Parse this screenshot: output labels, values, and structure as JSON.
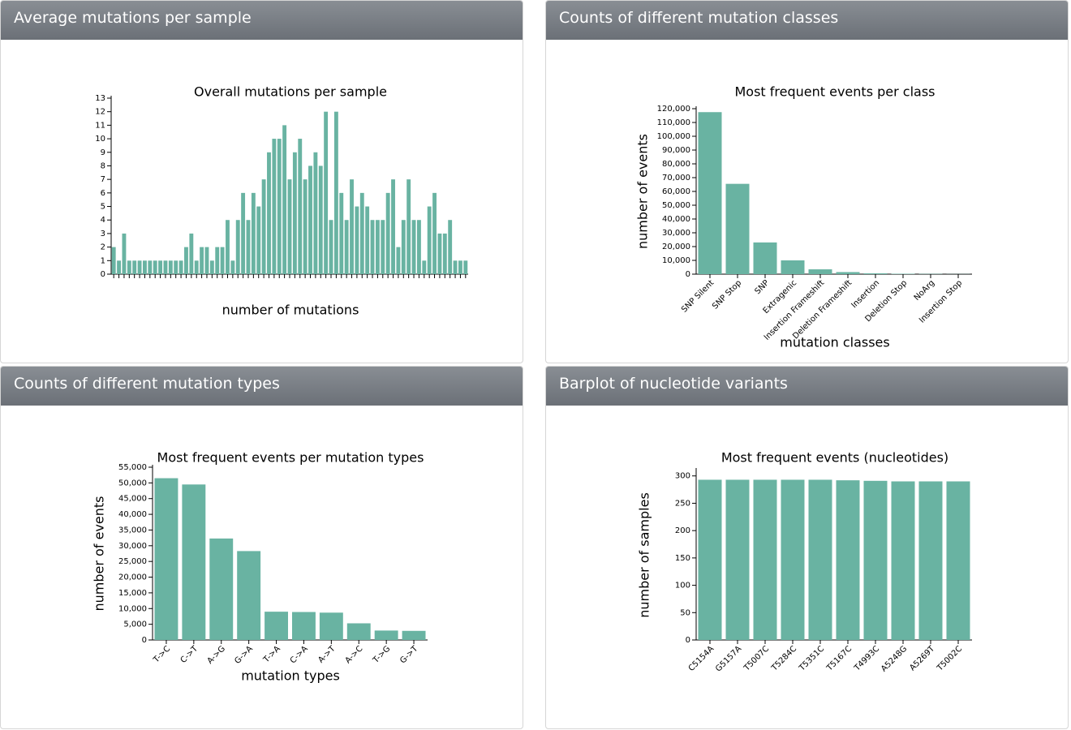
{
  "chart_data": [
    {
      "type": "bar",
      "panel_title": "Average mutations per sample",
      "title": "Overall mutations per sample",
      "x_label": "number of mutations",
      "color": "#69b3a2",
      "categories": [
        null,
        null,
        null,
        null,
        null,
        null,
        null,
        null,
        null,
        null,
        null,
        null,
        null,
        null,
        null,
        null,
        null,
        null,
        null,
        null,
        null,
        null,
        null,
        null,
        null,
        null,
        null,
        null,
        null,
        null,
        null,
        null,
        null,
        null,
        null,
        null,
        null,
        null,
        null,
        null,
        null,
        null,
        null,
        null,
        null,
        null,
        null,
        null,
        null,
        null,
        null,
        null,
        null,
        null,
        null,
        null,
        null,
        null,
        null,
        null,
        null,
        null,
        null,
        null,
        null,
        null,
        null,
        null,
        null
      ],
      "values": [
        2,
        1,
        3,
        1,
        1,
        1,
        1,
        1,
        1,
        1,
        1,
        1,
        1,
        1,
        2,
        3,
        1,
        2,
        2,
        1,
        2,
        2,
        4,
        1,
        4,
        6,
        4,
        6,
        5,
        7,
        9,
        10,
        10,
        11,
        7,
        9,
        10,
        7,
        8,
        9,
        8,
        12,
        4,
        12,
        6,
        4,
        7,
        5,
        6,
        5,
        4,
        4,
        4,
        6,
        7,
        2,
        4,
        7,
        4,
        4,
        1,
        5,
        6,
        3,
        3,
        4,
        1,
        1,
        1
      ],
      "ylim": [
        0,
        13
      ],
      "yticks": [
        0,
        1,
        2,
        3,
        4,
        5,
        6,
        7,
        8,
        9,
        10,
        11,
        12,
        13
      ]
    },
    {
      "type": "bar",
      "panel_title": "Counts of different mutation classes",
      "title": "Most frequent events per class",
      "x_label": "mutation classes",
      "y_label": "number of events",
      "color": "#69b3a2",
      "categories": [
        "SNP Silent",
        "SNP Stop",
        "SNP",
        "Extragenic",
        "Insertion Frameshift",
        "Deletion Frameshift",
        "Insertion",
        "Deletion Stop",
        "NoArg",
        "Insertion Stop"
      ],
      "values": [
        117500,
        65500,
        23000,
        10000,
        3500,
        1500,
        600,
        300,
        200,
        100
      ],
      "ylim": [
        0,
        120000
      ],
      "yticks": [
        0,
        {
          "value": 10000,
          "label": "10,000"
        },
        {
          "value": 20000,
          "label": "20,000"
        },
        {
          "value": 30000,
          "label": "30,000"
        },
        {
          "value": 40000,
          "label": "40,000"
        },
        {
          "value": 50000,
          "label": "50,000"
        },
        {
          "value": 60000,
          "label": "60,000"
        },
        {
          "value": 70000,
          "label": "70,000"
        },
        {
          "value": 80000,
          "label": "80,000"
        },
        {
          "value": 90000,
          "label": "90,000"
        },
        {
          "value": 100000,
          "label": "100,000"
        },
        {
          "value": 110000,
          "label": "110,000"
        },
        {
          "value": 120000,
          "label": "120,000"
        }
      ]
    },
    {
      "type": "bar",
      "panel_title": "Counts of different mutation types",
      "title": "Most frequent events per mutation types",
      "x_label": "mutation types",
      "y_label": "number of events",
      "color": "#69b3a2",
      "categories": [
        "T->C",
        "C->T",
        "A->G",
        "G->A",
        "T->A",
        "C->A",
        "A->T",
        "A->C",
        "T->G",
        "G->T"
      ],
      "values": [
        51500,
        49500,
        32300,
        28300,
        9000,
        8900,
        8700,
        5300,
        3000,
        2900
      ],
      "ylim": [
        0,
        55000
      ],
      "yticks": [
        0,
        {
          "value": 5000,
          "label": "5,000"
        },
        {
          "value": 10000,
          "label": "10,000"
        },
        {
          "value": 15000,
          "label": "15,000"
        },
        {
          "value": 20000,
          "label": "20,000"
        },
        {
          "value": 25000,
          "label": "25,000"
        },
        {
          "value": 30000,
          "label": "30,000"
        },
        {
          "value": 35000,
          "label": "35,000"
        },
        {
          "value": 40000,
          "label": "40,000"
        },
        {
          "value": 45000,
          "label": "45,000"
        },
        {
          "value": 50000,
          "label": "50,000"
        },
        {
          "value": 55000,
          "label": "55,000"
        }
      ]
    },
    {
      "type": "bar",
      "panel_title": "Barplot of nucleotide variants",
      "title": "Most frequent events (nucleotides)",
      "y_label": "number of samples",
      "color": "#69b3a2",
      "categories": [
        "C5154A",
        "G5157A",
        "T5007C",
        "T5284C",
        "T5351C",
        "T5167C",
        "T4993C",
        "A5248G",
        "A5269T",
        "T5002C"
      ],
      "values": [
        293,
        293,
        293,
        293,
        293,
        292,
        291,
        290,
        290,
        290
      ],
      "ylim": [
        0,
        310
      ],
      "yticks": [
        0,
        50,
        100,
        150,
        200,
        250,
        300
      ]
    }
  ]
}
